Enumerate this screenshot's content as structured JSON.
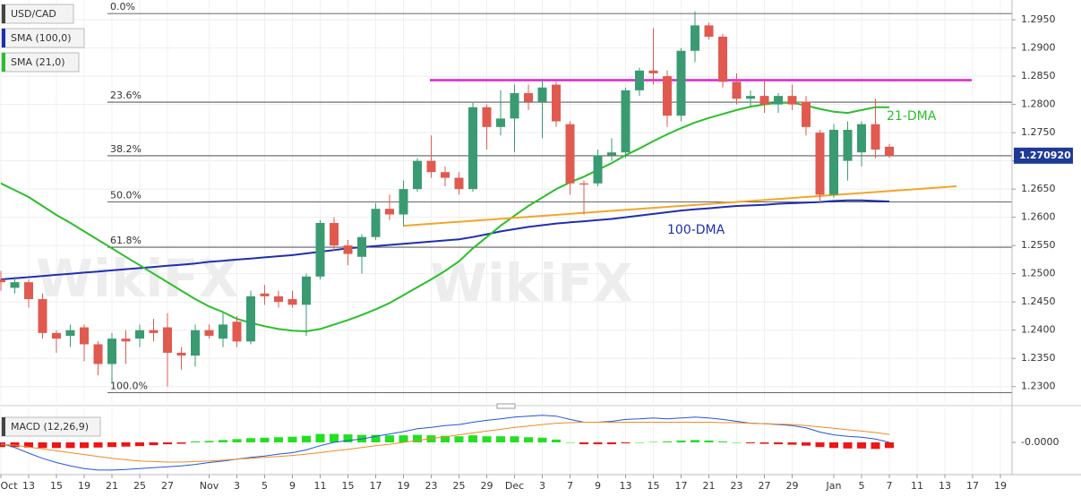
{
  "chart_data": [
    {
      "type": "candlestick",
      "title": "USD/CAD",
      "watermark": "WikiFX",
      "categories": [
        "Oct",
        null,
        "13",
        null,
        "15",
        null,
        "19",
        null,
        "21",
        null,
        "25",
        null,
        "27",
        null,
        null,
        "Nov",
        null,
        "3",
        null,
        "5",
        null,
        "9",
        null,
        "11",
        null,
        "15",
        null,
        "17",
        null,
        "19",
        null,
        "23",
        null,
        "25",
        null,
        "29",
        null,
        "Dec",
        null,
        "3",
        null,
        "7",
        null,
        "9",
        null,
        "13",
        null,
        "15",
        null,
        "17",
        null,
        "21",
        null,
        "23",
        null,
        "27",
        null,
        "29",
        null,
        null,
        "Jan",
        null,
        "5",
        null,
        "7",
        null,
        "11",
        null,
        "13",
        null,
        "17",
        null,
        "19"
      ],
      "open": [
        1.249,
        1.2475,
        1.2485,
        1.2455,
        1.2395,
        1.239,
        1.2405,
        1.2375,
        1.234,
        1.2385,
        1.2385,
        1.24,
        1.2405,
        1.236,
        1.2355,
        1.24,
        1.2385,
        1.2415,
        1.238,
        1.2465,
        1.246,
        1.2455,
        1.2445,
        1.2495,
        1.259,
        1.255,
        1.253,
        1.2565,
        1.2615,
        1.2605,
        1.265,
        1.27,
        1.268,
        1.267,
        1.265,
        1.2795,
        1.276,
        1.2775,
        1.282,
        1.2805,
        1.2835,
        1.2765,
        1.266,
        1.266,
        1.271,
        1.2715,
        1.2825,
        1.286,
        1.285,
        1.278,
        1.2895,
        1.294,
        1.292,
        1.284,
        1.281,
        1.2815,
        1.28,
        1.2815,
        1.2805,
        1.275,
        1.264,
        1.27,
        1.2715,
        1.2765,
        1.2725,
        null,
        null,
        null,
        null,
        null,
        null,
        null,
        null
      ],
      "high": [
        1.2505,
        1.2495,
        1.249,
        1.2465,
        1.24,
        1.241,
        1.241,
        1.238,
        1.2395,
        1.24,
        1.241,
        1.242,
        1.243,
        1.237,
        1.241,
        1.241,
        1.243,
        1.2425,
        1.247,
        1.248,
        1.247,
        1.247,
        1.25,
        1.2595,
        1.26,
        1.256,
        1.257,
        1.2625,
        1.264,
        1.2665,
        1.2705,
        1.2745,
        1.269,
        1.268,
        1.2805,
        1.28,
        1.2825,
        1.2835,
        1.2835,
        1.2845,
        1.284,
        1.277,
        1.2665,
        1.272,
        1.274,
        1.283,
        1.2865,
        1.2935,
        1.286,
        1.29,
        1.2965,
        1.2945,
        1.2925,
        1.2855,
        1.2825,
        1.2845,
        1.282,
        1.2835,
        1.2815,
        1.2755,
        1.2765,
        1.277,
        1.277,
        1.281,
        1.273,
        null,
        null,
        null,
        null,
        null,
        null,
        null,
        null
      ],
      "low": [
        1.247,
        1.2465,
        1.244,
        1.2385,
        1.236,
        1.237,
        1.2345,
        1.232,
        1.2305,
        1.234,
        1.237,
        1.238,
        1.23,
        1.233,
        1.2335,
        1.2385,
        1.237,
        1.237,
        1.2375,
        1.2445,
        1.244,
        1.244,
        1.239,
        1.249,
        1.254,
        1.2515,
        1.25,
        1.256,
        1.2595,
        1.2585,
        1.2645,
        1.267,
        1.2655,
        1.264,
        1.2645,
        1.272,
        1.2745,
        1.2715,
        1.279,
        1.274,
        1.276,
        1.264,
        1.2605,
        1.2655,
        1.27,
        1.2705,
        1.2815,
        1.2835,
        1.276,
        1.277,
        1.2875,
        1.2915,
        1.283,
        1.28,
        1.2795,
        1.2785,
        1.2785,
        1.279,
        1.2745,
        1.2625,
        1.2635,
        1.2665,
        1.269,
        1.2705,
        1.2705,
        null,
        null,
        null,
        null,
        null,
        null,
        null,
        null
      ],
      "close": [
        1.2485,
        1.2485,
        1.2455,
        1.2395,
        1.2385,
        1.24,
        1.2375,
        1.234,
        1.2385,
        1.238,
        1.24,
        1.2395,
        1.236,
        1.2355,
        1.24,
        1.239,
        1.241,
        1.238,
        1.246,
        1.246,
        1.245,
        1.2445,
        1.2495,
        1.259,
        1.255,
        1.2535,
        1.2565,
        1.2615,
        1.2605,
        1.265,
        1.27,
        1.268,
        1.267,
        1.265,
        1.2795,
        1.276,
        1.2775,
        1.282,
        1.2805,
        1.283,
        1.277,
        1.266,
        1.2658,
        1.271,
        1.2715,
        1.2825,
        1.286,
        1.2855,
        1.278,
        1.2895,
        1.294,
        1.292,
        1.284,
        1.281,
        1.2815,
        1.28,
        1.2815,
        1.28,
        1.276,
        1.264,
        1.2755,
        1.2755,
        1.2765,
        1.272,
        1.2709,
        null,
        null,
        null,
        null,
        null,
        null,
        null,
        null
      ],
      "up_color": "#3a9b72",
      "down_color": "#e05a50",
      "series": [
        {
          "name": "SMA (100,0)",
          "color": "#1f2fb0",
          "annotation": "100-DMA",
          "values": [
            1.249,
            1.2492,
            1.2494,
            1.2496,
            1.2498,
            1.25,
            1.2502,
            1.2504,
            1.2506,
            1.2508,
            1.251,
            1.2512,
            1.2514,
            1.2516,
            1.2518,
            1.2521,
            1.2523,
            1.2525,
            1.2527,
            1.2529,
            1.2531,
            1.2533,
            1.2536,
            1.2539,
            1.2542,
            1.2545,
            1.2547,
            1.2549,
            1.2551,
            1.2553,
            1.2555,
            1.2557,
            1.2559,
            1.2561,
            1.2565,
            1.257,
            1.2575,
            1.2579,
            1.2583,
            1.2586,
            1.2589,
            1.2591,
            1.2593,
            1.2595,
            1.2597,
            1.26,
            1.2603,
            1.2606,
            1.2609,
            1.2612,
            1.2614,
            1.2616,
            1.2618,
            1.262,
            1.2621,
            1.2622,
            1.2624,
            1.2625,
            1.2626,
            1.2627,
            1.2629,
            1.263,
            1.263,
            1.2629,
            1.2628,
            null,
            null,
            null,
            null,
            null,
            null,
            null,
            null
          ]
        },
        {
          "name": "SMA (21,0)",
          "color": "#2bbf2b",
          "annotation": "21-DMA",
          "values": [
            1.266,
            1.2648,
            1.2636,
            1.262,
            1.2604,
            1.259,
            1.2575,
            1.256,
            1.2545,
            1.253,
            1.2515,
            1.25,
            1.2485,
            1.247,
            1.2455,
            1.2442,
            1.2432,
            1.242,
            1.2413,
            1.2407,
            1.2402,
            1.2399,
            1.2398,
            1.2402,
            1.241,
            1.2418,
            1.2427,
            1.2437,
            1.2448,
            1.2462,
            1.2476,
            1.249,
            1.2505,
            1.2522,
            1.2545,
            1.2565,
            1.2585,
            1.2603,
            1.262,
            1.2635,
            1.265,
            1.2662,
            1.2672,
            1.2684,
            1.2696,
            1.271,
            1.2722,
            1.2735,
            1.2747,
            1.2758,
            1.2768,
            1.2776,
            1.2783,
            1.279,
            1.2796,
            1.28,
            1.2803,
            1.2803,
            1.2798,
            1.2792,
            1.2787,
            1.2785,
            1.279,
            1.2795,
            1.2795,
            null,
            null,
            null,
            null,
            null,
            null,
            null,
            null
          ]
        }
      ],
      "fib_levels": [
        {
          "label": "0.0%",
          "value": 1.2961
        },
        {
          "label": "23.6%",
          "value": 1.2804
        },
        {
          "label": "38.2%",
          "value": 1.2709
        },
        {
          "label": "50.0%",
          "value": 1.2627
        },
        {
          "label": "61.8%",
          "value": 1.2547
        },
        {
          "label": "100.0%",
          "value": 1.2289
        }
      ],
      "resistance": {
        "value": 1.2843,
        "color": "#e020d8"
      },
      "trendline": {
        "values": [
          1.2585,
          1.2655
        ],
        "color": "#f3a52a"
      },
      "last_price": {
        "value": 1.27092,
        "label": "1.270920"
      },
      "ylim": [
        1.2271,
        1.2985
      ],
      "yticks": [
        {
          "value": 1.23,
          "label": "1.2300"
        },
        {
          "value": 1.235,
          "label": "1.2350"
        },
        {
          "value": 1.24,
          "label": "1.2400"
        },
        {
          "value": 1.245,
          "label": "1.2450"
        },
        {
          "value": 1.25,
          "label": "1.2500"
        },
        {
          "value": 1.255,
          "label": "1.2550"
        },
        {
          "value": 1.26,
          "label": "1.2600"
        },
        {
          "value": 1.265,
          "label": "1.2650"
        },
        {
          "value": 1.27,
          "label": "1.2700"
        },
        {
          "value": 1.275,
          "label": "1.2750"
        },
        {
          "value": 1.28,
          "label": "1.2800"
        },
        {
          "value": 1.285,
          "label": "1.2850"
        },
        {
          "value": 1.29,
          "label": "1.2900"
        },
        {
          "value": 1.295,
          "label": "1.2950"
        }
      ],
      "grid": true
    },
    {
      "type": "macd",
      "title": "MACD (12,26,9)",
      "histogram": [
        -0.001,
        -0.001,
        -0.0011,
        -0.0012,
        -0.0012,
        -0.0012,
        -0.0012,
        -0.0011,
        -0.001,
        -0.0009,
        -0.0008,
        -0.0006,
        -0.0004,
        -0.0003,
        0.0002,
        0.0003,
        0.0005,
        0.0007,
        0.0009,
        0.001,
        0.0011,
        0.0012,
        0.0014,
        0.0018,
        0.0018,
        0.0017,
        0.0016,
        0.0016,
        0.0015,
        0.0015,
        0.0016,
        0.0015,
        0.0014,
        0.0013,
        0.0015,
        0.0013,
        0.0013,
        0.0013,
        0.0011,
        0.001,
        0.0006,
        0.0,
        -0.0004,
        -0.0004,
        -0.0004,
        -0.0002,
        0.0,
        0.0001,
        0.0002,
        0.0004,
        0.0005,
        0.0004,
        0.0002,
        0.0,
        -0.0002,
        -0.0003,
        -0.0004,
        -0.0005,
        -0.0007,
        -0.001,
        -0.0012,
        -0.0013,
        -0.0013,
        -0.0014,
        -0.0012,
        null,
        null,
        null,
        null,
        null,
        null,
        null,
        null
      ],
      "up_color": "#22e022",
      "down_color": "#ee1515",
      "series": [
        {
          "color": "#2255dd",
          "values": [
            -0.0002,
            -0.0011,
            -0.0023,
            -0.0034,
            -0.0043,
            -0.005,
            -0.0056,
            -0.0059,
            -0.0059,
            -0.0058,
            -0.0056,
            -0.0054,
            -0.0052,
            -0.005,
            -0.0047,
            -0.0043,
            -0.004,
            -0.0036,
            -0.0032,
            -0.0029,
            -0.0025,
            -0.0022,
            -0.0016,
            -0.0007,
            0.0,
            0.0004,
            0.0007,
            0.0013,
            0.0018,
            0.0023,
            0.0029,
            0.0032,
            0.0036,
            0.0038,
            0.0043,
            0.0047,
            0.005,
            0.0054,
            0.0056,
            0.0058,
            0.0056,
            0.0049,
            0.0043,
            0.0043,
            0.0045,
            0.0049,
            0.005,
            0.0052,
            0.005,
            0.0052,
            0.0054,
            0.0052,
            0.0049,
            0.0045,
            0.0041,
            0.004,
            0.0038,
            0.0036,
            0.0031,
            0.0022,
            0.0016,
            0.0013,
            0.0011,
            0.0007,
            0.0,
            null,
            null,
            null,
            null,
            null,
            null,
            null,
            null
          ]
        },
        {
          "color": "#f08a24",
          "values": [
            -0.0004,
            -0.0006,
            -0.001,
            -0.0014,
            -0.0018,
            -0.0022,
            -0.0026,
            -0.003,
            -0.0034,
            -0.0037,
            -0.004,
            -0.0041,
            -0.0042,
            -0.0042,
            -0.0041,
            -0.004,
            -0.0038,
            -0.0036,
            -0.0034,
            -0.0032,
            -0.003,
            -0.0028,
            -0.0025,
            -0.0022,
            -0.0018,
            -0.0015,
            -0.0011,
            -0.0007,
            -0.0004,
            0.0,
            0.0004,
            0.0008,
            0.0012,
            0.0016,
            0.002,
            0.0024,
            0.0028,
            0.0032,
            0.0035,
            0.0038,
            0.0041,
            0.0042,
            0.0043,
            0.0043,
            0.0043,
            0.0043,
            0.0043,
            0.0043,
            0.0043,
            0.0043,
            0.0043,
            0.0043,
            0.0042,
            0.0042,
            0.0041,
            0.004,
            0.0039,
            0.0038,
            0.0036,
            0.0033,
            0.003,
            0.0027,
            0.0024,
            0.0021,
            0.0017,
            null,
            null,
            null,
            null,
            null,
            null,
            null,
            null
          ]
        }
      ],
      "ylim": [
        -0.0065,
        0.0065
      ],
      "yticks": [
        {
          "value": 0,
          "label": "-0.0000"
        }
      ]
    }
  ]
}
